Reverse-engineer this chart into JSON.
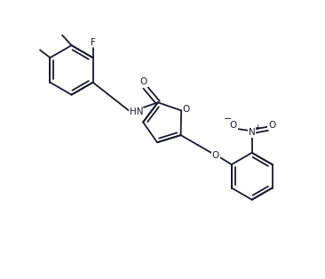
{
  "bg_color": "#ffffff",
  "line_color": "#1a1a2e",
  "text_color": "#1a1a2e",
  "figsize": [
    3.66,
    3.14
  ],
  "dpi": 100,
  "xlim": [
    0,
    10
  ],
  "ylim": [
    0,
    9
  ],
  "lw": 1.3
}
